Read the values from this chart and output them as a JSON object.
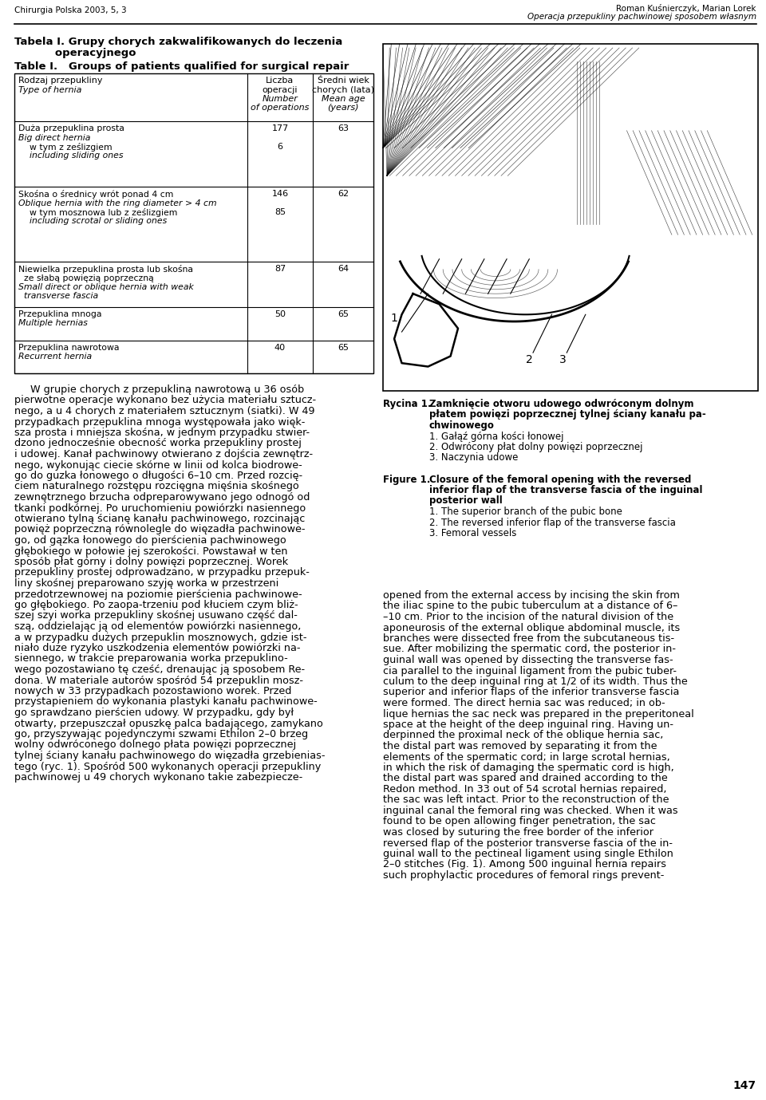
{
  "page_title_left": "Chirurgia Polska 2003, 5, 3",
  "page_title_right_line1": "Roman Kuśnierczyk, Marian Lorek",
  "page_title_right_line2": "Operacja przepukliny pachwinowej sposobem własnym",
  "table_title_pl_1": "Tabela I. Grupy chorych zakwalifikowanych do leczenia",
  "table_title_pl_2": "           operacyjnego",
  "table_title_en": "Table I.   Groups of patients qualified for surgical repair",
  "col_header_1": [
    "Rodzaj przepukliny",
    "Type of hernia"
  ],
  "col_header_2": [
    "Liczba",
    "operacji",
    "Number",
    "of operations"
  ],
  "col_header_3": [
    "Średni wiek",
    "chorych (lata)",
    "Mean age",
    "(years)"
  ],
  "row1_left": [
    "Duża przepuklina prosta",
    "Big direct hernia",
    "    w tym z ześlizgiem",
    "    including sliding ones"
  ],
  "row1_left_italic": [
    false,
    true,
    false,
    true
  ],
  "row1_num": "177",
  "row1_sub": "6",
  "row1_age": "63",
  "row2_left": [
    "Skośna o średnicy wrót ponad 4 cm",
    "Oblique hernia with the ring diameter > 4 cm",
    "    w tym mosznowa lub z ześlizgiem",
    "    including scrotal or sliding ones"
  ],
  "row2_left_italic": [
    false,
    true,
    false,
    true
  ],
  "row2_num": "146",
  "row2_sub": "85",
  "row2_age": "62",
  "row3_left": [
    "Niewielka przepuklina prosta lub skośna",
    "  ze słabą powięzią poprzeczną",
    "Small direct or oblique hernia with weak",
    "  transverse fascia"
  ],
  "row3_left_italic": [
    false,
    false,
    true,
    true
  ],
  "row3_num": "87",
  "row3_sub": "",
  "row3_age": "64",
  "row4_left": [
    "Przepuklina mnoga",
    "Multiple hernias"
  ],
  "row4_left_italic": [
    false,
    true
  ],
  "row4_num": "50",
  "row4_sub": "",
  "row4_age": "65",
  "row5_left": [
    "Przepuklina nawrotowa",
    "Recurrent hernia"
  ],
  "row5_left_italic": [
    false,
    true
  ],
  "row5_num": "40",
  "row5_sub": "",
  "row5_age": "65",
  "left_body": [
    "     W grupie chorych z przepukliną nawrotową u 36 osób",
    "pierwotne operacje wykonano bez użycia materiału sztucz-",
    "nego, a u 4 chorych z materiałem sztucznym (siatki). W 49",
    "przypadkach przepuklina mnoga występowała jako więk-",
    "sza prosta i mniejsza skośna, w jednym przypadku stwier-",
    "dzono jednocześnie obecność worka przepukliny prostej",
    "i udowej. Kanał pachwinowy otwierano z dojścia zewnętrz-",
    "nego, wykonując ciecie skórne w linii od kolca biodrowe-",
    "go do guzka łonowego o długości 6–10 cm. Przed rozcię-",
    "ciem naturalnego rozstępu rozcięgna mięśnia skośnego",
    "zewnętrznego brzucha odpreparowywano jego odnogó od",
    "tkanki podkórnej. Po uruchomieniu powiórzki nasiennego",
    "otwierano tylną ścianę kanału pachwinowego, rozcinając",
    "powięż poprzeczną równolegle do więzadła pachwinowe-",
    "go, od gązka łonowego do pierścienia pachwinowego",
    "głębokiego w połowie jej szerokości. Powstawał w ten",
    "sposób płat górny i dolny powięzi poprzecznej. Worek",
    "przepukliny prostej odprowadzano, w przypadku przepuk-",
    "liny skośnej preparowano szyję worka w przestrzeni",
    "przedotrzewnowej na poziomie pierścienia pachwinowe-",
    "go głębokiego. Po zaopa-trzeniu pod kłuciem czym bliż-",
    "szej szyi worka przepukliny skośnej usuwano część dal-",
    "szą, oddzielając ją od elementów powiórzki nasiennego,",
    "a w przypadku dużych przepuklin mosznowych, gdzie ist-",
    "niało duże ryzyko uszkodzenia elementów powiórzki na-",
    "siennego, w trakcie preparowania worka przepuklino-",
    "wego pozostawiano tę cześć, drenaując ją sposobem Re-",
    "dona. W materiale autorów spośród 54 przepuklin mosz-",
    "nowych w 33 przypadkach pozostawiono worek. Przed",
    "przystapieniem do wykonania plastyki kanału pachwinowe-",
    "go sprawdzano pierścien udowy. W przypadku, gdy był",
    "otwarty, przepuszczał opuszkę palca badającego, zamykano",
    "go, przyszywając pojedynczymi szwami Ethilon 2–0 brzeg",
    "wolny odwróconego dolnego płata powięzi poprzecznej",
    "tylnej ściany kanału pachwinowego do więzadła grzebienias-",
    "tego (ryc. 1). Spośród 500 wykonanych operacji przepukliny",
    "pachwinowej u 49 chorych wykonano takie zabezpiecze-"
  ],
  "rycina_lines": [
    [
      "Rycina 1.",
      false,
      "Zamknięcie otworu udowego odwróconym dolnym",
      false
    ],
    [
      "",
      false,
      "płatem powięzi poprzecznej tylnej ściany kanału pa-",
      true
    ],
    [
      "",
      false,
      "chwinowego",
      true
    ],
    [
      "",
      false,
      "1. Gałąż górna kości łonowej",
      false
    ],
    [
      "",
      false,
      "2. Odwrócony płat dolny powięzi poprzecznej",
      false
    ],
    [
      "",
      false,
      "3. Naczynia udowe",
      false
    ]
  ],
  "figure_lines": [
    [
      "Figure 1.",
      true,
      "Closure of the femoral opening with the reversed",
      true
    ],
    [
      "",
      false,
      "inferior flap of the transverse fascia of the inguinal",
      true
    ],
    [
      "",
      false,
      "posterior wall",
      true
    ],
    [
      "",
      false,
      "1. The superior branch of the pubic bone",
      false
    ],
    [
      "",
      false,
      "2. The reversed inferior flap of the transverse fascia",
      false
    ],
    [
      "",
      false,
      "3. Femoral vessels",
      false
    ]
  ],
  "right_body": [
    "opened from the external access by incising the skin from",
    "the iliac spine to the pubic tuberculum at a distance of 6–",
    "–10 cm. Prior to the incision of the natural division of the",
    "aponeurosis of the external oblique abdominal muscle, its",
    "branches were dissected free from the subcutaneous tis-",
    "sue. After mobilizing the spermatic cord, the posterior in-",
    "guinal wall was opened by dissecting the transverse fas-",
    "cia parallel to the inguinal ligament from the pubic tuber-",
    "culum to the deep inguinal ring at 1/2 of its width. Thus the",
    "superior and inferior flaps of the inferior transverse fascia",
    "were formed. The direct hernia sac was reduced; in ob-",
    "lique hernias the sac neck was prepared in the preperitoneal",
    "space at the height of the deep inguinal ring. Having un-",
    "derpinned the proximal neck of the oblique hernia sac,",
    "the distal part was removed by separating it from the",
    "elements of the spermatic cord; in large scrotal hernias,",
    "in which the risk of damaging the spermatic cord is high,",
    "the distal part was spared and drained according to the",
    "Redon method. In 33 out of 54 scrotal hernias repaired,",
    "the sac was left intact. Prior to the reconstruction of the",
    "inguinal canal the femoral ring was checked. When it was",
    "found to be open allowing finger penetration, the sac",
    "was closed by suturing the free border of the inferior",
    "reversed flap of the posterior transverse fascia of the in-",
    "guinal wall to the pectineal ligament using single Ethilon",
    "2–0 stitches (Fig. 1). Among 500 inguinal hernia repairs",
    "such prophylactic procedures of femoral rings prevent-"
  ],
  "page_number": "147",
  "bg_color": "#ffffff"
}
